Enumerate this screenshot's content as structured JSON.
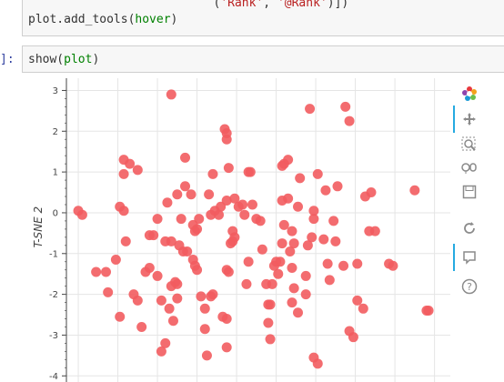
{
  "notebook": {
    "prev_cell": {
      "line1_prefix": "                          (",
      "line1_str1": "'Rank'",
      "line1_mid": ", ",
      "line1_str2": "'@Rank'",
      "line1_suffix": ")])",
      "line2_fn": "plot.add_tools(",
      "line2_arg": "hover",
      "line2_end": ")"
    },
    "show_cell": {
      "prompt": "]:",
      "fn": "show(",
      "arg": "plot",
      "end": ")"
    }
  },
  "toolbar": {
    "tools": [
      "bokeh-logo-icon",
      "pan-icon",
      "box-zoom-icon",
      "wheel-zoom-icon",
      "save-icon",
      "reset-icon",
      "hover-icon",
      "help-icon"
    ]
  },
  "colors": {
    "point": "#f25c5f",
    "accent": "#26aae1"
  },
  "chart_data": {
    "type": "scatter",
    "ylabel": "T-SNE 2",
    "ylim": [
      -4.15,
      3.3
    ],
    "yticks": [
      "3",
      "2",
      "1",
      "0",
      "-1",
      "-2",
      "-3",
      "-4"
    ],
    "points": [
      [
        -2.0,
        0.05
      ],
      [
        -1.9,
        -0.05
      ],
      [
        -1.55,
        -1.45
      ],
      [
        -1.3,
        -1.45
      ],
      [
        -1.25,
        -1.95
      ],
      [
        -1.05,
        -1.15
      ],
      [
        -0.95,
        -2.55
      ],
      [
        -0.95,
        0.15
      ],
      [
        -0.85,
        0.05
      ],
      [
        -0.8,
        -0.7
      ],
      [
        -0.85,
        1.3
      ],
      [
        -0.7,
        1.2
      ],
      [
        -0.5,
        1.05
      ],
      [
        -0.85,
        0.95
      ],
      [
        -0.6,
        -2.0
      ],
      [
        -0.5,
        -2.15
      ],
      [
        -0.4,
        -2.8
      ],
      [
        -0.3,
        -1.45
      ],
      [
        -0.2,
        -1.35
      ],
      [
        -0.2,
        -0.55
      ],
      [
        -0.1,
        -0.55
      ],
      [
        0.0,
        -1.55
      ],
      [
        0.1,
        -2.15
      ],
      [
        0.0,
        -0.15
      ],
      [
        0.1,
        -3.4
      ],
      [
        0.2,
        -3.2
      ],
      [
        0.3,
        -2.35
      ],
      [
        0.25,
        0.25
      ],
      [
        0.2,
        -0.7
      ],
      [
        0.35,
        -0.7
      ],
      [
        0.35,
        -1.8
      ],
      [
        0.45,
        -1.7
      ],
      [
        0.5,
        -2.1
      ],
      [
        0.4,
        -2.65
      ],
      [
        0.5,
        -1.75
      ],
      [
        0.35,
        2.9
      ],
      [
        0.5,
        0.45
      ],
      [
        0.6,
        -0.15
      ],
      [
        0.55,
        -0.8
      ],
      [
        0.65,
        -0.95
      ],
      [
        0.75,
        -0.95
      ],
      [
        0.7,
        1.35
      ],
      [
        0.7,
        0.65
      ],
      [
        0.85,
        0.45
      ],
      [
        0.9,
        -0.3
      ],
      [
        0.9,
        -1.15
      ],
      [
        0.95,
        -1.3
      ],
      [
        1.0,
        -1.4
      ],
      [
        0.95,
        -0.45
      ],
      [
        1.05,
        -0.15
      ],
      [
        1.0,
        -0.4
      ],
      [
        1.1,
        -2.05
      ],
      [
        1.2,
        -2.85
      ],
      [
        1.25,
        -3.5
      ],
      [
        1.2,
        -2.35
      ],
      [
        1.35,
        -2.05
      ],
      [
        1.4,
        -2.0
      ],
      [
        1.3,
        0.45
      ],
      [
        1.45,
        0.05
      ],
      [
        1.35,
        -0.05
      ],
      [
        1.4,
        0.95
      ],
      [
        1.55,
        -0.05
      ],
      [
        1.6,
        0.15
      ],
      [
        1.65,
        -2.55
      ],
      [
        1.75,
        -2.6
      ],
      [
        1.75,
        -3.3
      ],
      [
        1.75,
        -1.4
      ],
      [
        1.8,
        -1.45
      ],
      [
        1.7,
        2.05
      ],
      [
        1.75,
        1.95
      ],
      [
        1.75,
        1.8
      ],
      [
        1.8,
        1.1
      ],
      [
        1.75,
        0.3
      ],
      [
        1.85,
        -0.75
      ],
      [
        1.9,
        -0.7
      ],
      [
        1.9,
        -0.45
      ],
      [
        1.95,
        -0.6
      ],
      [
        1.95,
        0.35
      ],
      [
        2.05,
        0.15
      ],
      [
        2.15,
        0.2
      ],
      [
        2.2,
        -0.05
      ],
      [
        2.3,
        -1.2
      ],
      [
        2.25,
        -1.75
      ],
      [
        2.3,
        1.0
      ],
      [
        2.35,
        1.0
      ],
      [
        2.4,
        0.2
      ],
      [
        2.5,
        -0.15
      ],
      [
        2.6,
        -0.2
      ],
      [
        2.65,
        -0.9
      ],
      [
        2.75,
        -1.75
      ],
      [
        2.8,
        -2.25
      ],
      [
        2.85,
        -2.25
      ],
      [
        2.8,
        -2.7
      ],
      [
        2.85,
        -3.1
      ],
      [
        2.9,
        -1.75
      ],
      [
        2.95,
        -1.3
      ],
      [
        3.0,
        -1.2
      ],
      [
        3.05,
        -1.5
      ],
      [
        3.1,
        -1.2
      ],
      [
        3.15,
        -0.75
      ],
      [
        3.2,
        -0.3
      ],
      [
        3.15,
        0.3
      ],
      [
        3.2,
        1.2
      ],
      [
        3.3,
        1.3
      ],
      [
        3.15,
        1.15
      ],
      [
        3.3,
        0.35
      ],
      [
        3.35,
        -0.95
      ],
      [
        3.4,
        -1.35
      ],
      [
        3.45,
        -1.85
      ],
      [
        3.4,
        -2.2
      ],
      [
        3.55,
        -2.45
      ],
      [
        3.45,
        -0.75
      ],
      [
        3.4,
        -0.45
      ],
      [
        3.55,
        0.15
      ],
      [
        3.6,
        0.85
      ],
      [
        3.75,
        -2.0
      ],
      [
        3.75,
        -1.55
      ],
      [
        3.8,
        -0.8
      ],
      [
        3.9,
        -0.6
      ],
      [
        3.95,
        -0.15
      ],
      [
        3.95,
        0.05
      ],
      [
        3.85,
        2.55
      ],
      [
        3.95,
        -3.55
      ],
      [
        4.05,
        -3.7
      ],
      [
        4.05,
        0.95
      ],
      [
        4.2,
        -0.65
      ],
      [
        4.25,
        0.55
      ],
      [
        4.3,
        -1.25
      ],
      [
        4.35,
        -1.65
      ],
      [
        4.5,
        -0.7
      ],
      [
        4.45,
        -0.2
      ],
      [
        4.55,
        0.65
      ],
      [
        4.7,
        -1.3
      ],
      [
        4.75,
        2.6
      ],
      [
        4.85,
        2.25
      ],
      [
        4.85,
        -2.9
      ],
      [
        4.95,
        -3.05
      ],
      [
        5.05,
        -2.15
      ],
      [
        5.05,
        -1.25
      ],
      [
        5.2,
        -2.35
      ],
      [
        5.25,
        0.4
      ],
      [
        5.4,
        0.5
      ],
      [
        5.35,
        -0.45
      ],
      [
        5.5,
        -0.45
      ],
      [
        5.85,
        -1.25
      ],
      [
        5.95,
        -1.3
      ],
      [
        6.5,
        0.55
      ],
      [
        6.8,
        -2.4
      ],
      [
        6.85,
        -2.4
      ]
    ]
  }
}
